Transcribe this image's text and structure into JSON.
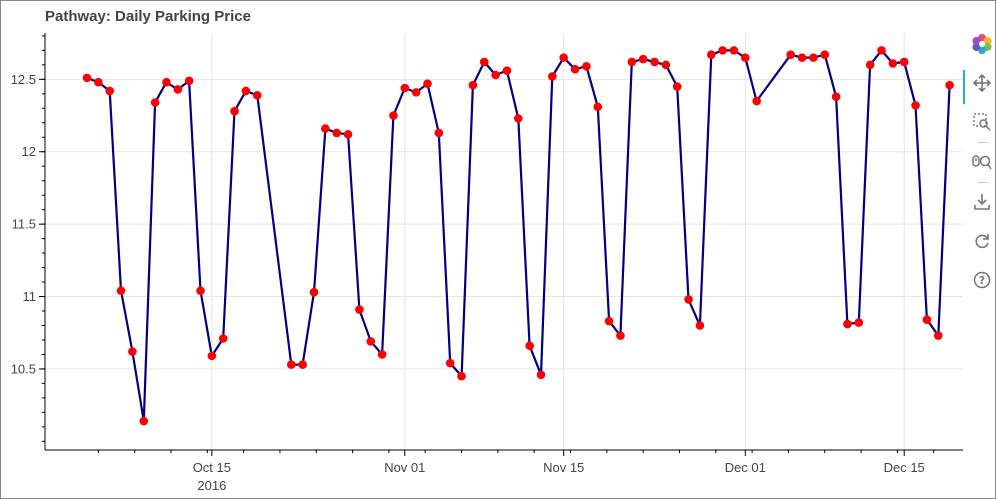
{
  "chart_data": {
    "type": "line",
    "title": "Pathway: Daily Parking Price",
    "xlabel": "",
    "ylabel": "",
    "x_tick_labels": [
      "Oct 15",
      "Nov 01",
      "Nov 15",
      "Dec 01",
      "Dec 15"
    ],
    "x_tick_dates": [
      "2016-10-15",
      "2016-11-01",
      "2016-11-15",
      "2016-12-01",
      "2016-12-15"
    ],
    "x_year_label": "2016",
    "y_ticks": [
      10.5,
      11,
      11.5,
      12,
      12.5
    ],
    "y_tick_labels": [
      "10.5",
      "11",
      "11.5",
      "12",
      "12.5"
    ],
    "xlim": [
      "2016-10-04",
      "2016-12-23"
    ],
    "ylim": [
      9.94,
      12.82
    ],
    "grid": true,
    "line_color": "#000080",
    "marker_color": "#ff0000",
    "series": [
      {
        "x": [
          "2016-10-04",
          "2016-10-05",
          "2016-10-06",
          "2016-10-07",
          "2016-10-08",
          "2016-10-09",
          "2016-10-10",
          "2016-10-11",
          "2016-10-12",
          "2016-10-13",
          "2016-10-14",
          "2016-10-15",
          "2016-10-16",
          "2016-10-17",
          "2016-10-18",
          "2016-10-19",
          "2016-10-20",
          "2016-10-21",
          "2016-10-22",
          "2016-10-23",
          "2016-10-24",
          "2016-10-25",
          "2016-10-26",
          "2016-10-27",
          "2016-10-28",
          "2016-10-29",
          "2016-10-30",
          "2016-10-31",
          "2016-11-01",
          "2016-11-02",
          "2016-11-03",
          "2016-11-04",
          "2016-11-05",
          "2016-11-06",
          "2016-11-07",
          "2016-11-08",
          "2016-11-09",
          "2016-11-10",
          "2016-11-11",
          "2016-11-12",
          "2016-11-13",
          "2016-11-14",
          "2016-11-15",
          "2016-11-16",
          "2016-11-17",
          "2016-11-18",
          "2016-11-19",
          "2016-11-20",
          "2016-11-21",
          "2016-11-22",
          "2016-11-23",
          "2016-11-24",
          "2016-11-25",
          "2016-11-26",
          "2016-11-27",
          "2016-11-28",
          "2016-11-29",
          "2016-11-30",
          "2016-12-01",
          "2016-12-02",
          "2016-12-03",
          "2016-12-04",
          "2016-12-05",
          "2016-12-06",
          "2016-12-07",
          "2016-12-08",
          "2016-12-09",
          "2016-12-10",
          "2016-12-11",
          "2016-12-12",
          "2016-12-13",
          "2016-12-14",
          "2016-12-15",
          "2016-12-16",
          "2016-12-17",
          "2016-12-18",
          "2016-12-19",
          "2016-12-20"
        ],
        "y": [
          12.51,
          12.48,
          12.42,
          11.04,
          10.62,
          10.14,
          12.34,
          12.48,
          12.43,
          12.49,
          11.04,
          10.59,
          10.71,
          12.28,
          12.42,
          12.39,
          null,
          null,
          10.53,
          10.53,
          11.03,
          12.16,
          12.13,
          12.12,
          10.91,
          10.69,
          10.6,
          12.25,
          12.44,
          12.41,
          12.47,
          12.13,
          10.54,
          10.45,
          12.46,
          12.62,
          12.53,
          12.56,
          12.23,
          10.66,
          10.46,
          12.52,
          12.65,
          12.57,
          12.59,
          12.31,
          10.83,
          10.73,
          12.62,
          12.64,
          12.62,
          12.6,
          12.45,
          10.98,
          10.8,
          12.67,
          12.7,
          12.7,
          12.65,
          12.35,
          null,
          null,
          12.67,
          12.65,
          12.65,
          12.67,
          12.38,
          10.81,
          10.82,
          12.6,
          12.7,
          12.61,
          12.62,
          12.32,
          10.84,
          10.73,
          12.46,
          null
        ]
      }
    ]
  },
  "toolbar": {
    "items": [
      {
        "name": "bokeh-logo-icon"
      },
      {
        "name": "pan-icon"
      },
      {
        "name": "box-zoom-icon"
      },
      {
        "name": "wheel-zoom-icon"
      },
      {
        "name": "save-icon"
      },
      {
        "name": "reset-icon"
      },
      {
        "name": "help-icon"
      }
    ]
  }
}
